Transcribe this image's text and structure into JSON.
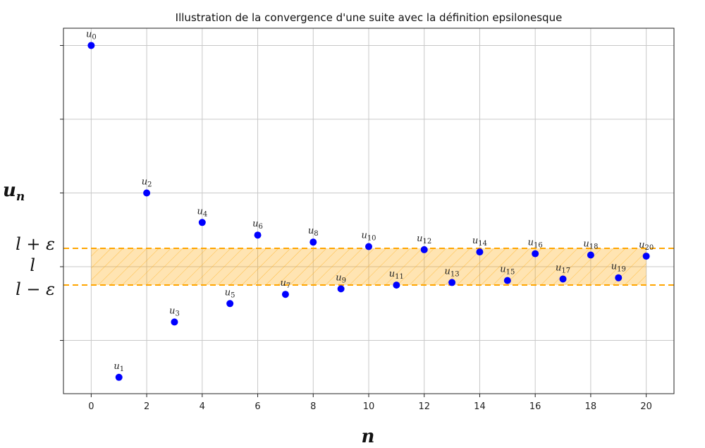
{
  "chart_data": {
    "type": "scatter",
    "title": "Illustration de la convergence d'une suite avec la définition epsilonesque",
    "xlabel": "n",
    "ylabel": "u_n",
    "xlim": [
      -1,
      21
    ],
    "ylim": [
      0.426,
      2.078
    ],
    "x_ticks": [
      0,
      2,
      4,
      6,
      8,
      10,
      12,
      14,
      16,
      18,
      20
    ],
    "y_gridlines": [
      0.6667,
      1.0,
      1.3333,
      1.6667,
      2.0
    ],
    "grid": true,
    "limit": 1.0,
    "epsilon": 0.083,
    "y_labels": {
      "upper": "l + ε",
      "limit": "l",
      "lower": "l − ε"
    },
    "band_x": [
      0,
      20
    ],
    "colors": {
      "points": "#0000ff",
      "band": "#ffa500"
    },
    "points": {
      "x": [
        0,
        1,
        2,
        3,
        4,
        5,
        6,
        7,
        8,
        9,
        10,
        11,
        12,
        13,
        14,
        15,
        16,
        17,
        18,
        19,
        20
      ],
      "y": [
        2.0,
        0.5,
        1.3333,
        0.75,
        1.2,
        0.8333,
        1.1429,
        0.875,
        1.1111,
        0.9,
        1.0909,
        0.9167,
        1.0769,
        0.9286,
        1.0667,
        0.9375,
        1.0588,
        0.9444,
        1.0526,
        0.95,
        1.0476
      ],
      "labels": [
        "u0",
        "u1",
        "u2",
        "u3",
        "u4",
        "u5",
        "u6",
        "u7",
        "u8",
        "u9",
        "u10",
        "u11",
        "u12",
        "u13",
        "u14",
        "u15",
        "u16",
        "u17",
        "u18",
        "u19",
        "u20"
      ]
    }
  }
}
